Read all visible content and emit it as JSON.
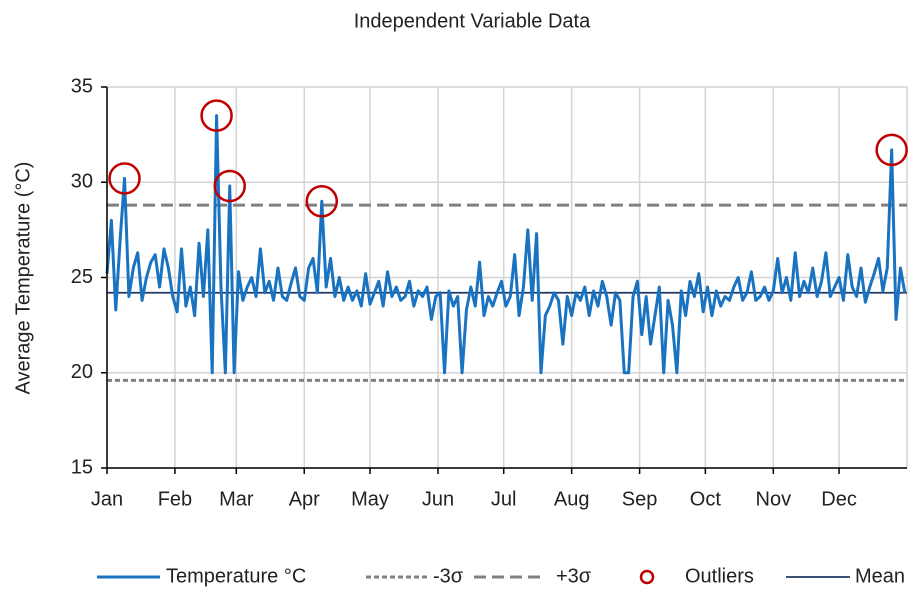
{
  "chart_data": {
    "type": "line",
    "title": "Independent Variable Data",
    "y_label": "Average Temperature (°C)",
    "xlim": [
      1,
      366
    ],
    "xticks": [
      {
        "value": 1,
        "label": "Jan"
      },
      {
        "value": 32,
        "label": "Feb"
      },
      {
        "value": 60,
        "label": "Mar"
      },
      {
        "value": 91,
        "label": "Apr"
      },
      {
        "value": 121,
        "label": "May"
      },
      {
        "value": 152,
        "label": "Jun"
      },
      {
        "value": 182,
        "label": "Jul"
      },
      {
        "value": 213,
        "label": "Aug"
      },
      {
        "value": 244,
        "label": "Sep"
      },
      {
        "value": 274,
        "label": "Oct"
      },
      {
        "value": 305,
        "label": "Nov"
      },
      {
        "value": 335,
        "label": "Dec"
      }
    ],
    "ylim": [
      15,
      35
    ],
    "yticks": [
      15,
      20,
      25,
      30,
      35
    ],
    "grid": true,
    "legend": "bottom",
    "x": [
      1,
      3,
      5,
      7,
      9,
      11,
      13,
      15,
      17,
      19,
      21,
      23,
      25,
      27,
      29,
      31,
      33,
      35,
      37,
      39,
      41,
      43,
      45,
      47,
      49,
      51,
      53,
      55,
      57,
      59,
      61,
      63,
      65,
      67,
      69,
      71,
      73,
      75,
      77,
      79,
      81,
      83,
      85,
      87,
      89,
      91,
      93,
      95,
      97,
      99,
      101,
      103,
      105,
      107,
      109,
      111,
      113,
      115,
      117,
      119,
      121,
      123,
      125,
      127,
      129,
      131,
      133,
      135,
      137,
      139,
      141,
      143,
      145,
      147,
      149,
      151,
      153,
      155,
      157,
      159,
      161,
      163,
      165,
      167,
      169,
      171,
      173,
      175,
      177,
      179,
      181,
      183,
      185,
      187,
      189,
      191,
      193,
      195,
      197,
      199,
      201,
      203,
      205,
      207,
      209,
      211,
      213,
      215,
      217,
      219,
      221,
      223,
      225,
      227,
      229,
      231,
      233,
      235,
      237,
      239,
      241,
      243,
      245,
      247,
      249,
      251,
      253,
      255,
      257,
      259,
      261,
      263,
      265,
      267,
      269,
      271,
      273,
      275,
      277,
      279,
      281,
      283,
      285,
      287,
      289,
      291,
      293,
      295,
      297,
      299,
      301,
      303,
      305,
      307,
      309,
      311,
      313,
      315,
      317,
      319,
      321,
      323,
      325,
      327,
      329,
      331,
      333,
      335,
      337,
      339,
      341,
      343,
      345,
      347,
      349,
      351,
      353,
      355,
      357,
      359,
      361,
      363,
      365
    ],
    "series": [
      {
        "name": "Temperature °C",
        "kind": "line",
        "color": "#1a73c1",
        "values": [
          25.2,
          28.0,
          23.3,
          27.0,
          30.2,
          24.0,
          25.5,
          26.3,
          23.8,
          25.0,
          25.8,
          26.2,
          24.5,
          26.5,
          25.5,
          24.0,
          23.2,
          26.5,
          23.5,
          24.5,
          23.0,
          26.8,
          24.0,
          27.5,
          20.0,
          33.5,
          24.5,
          20.0,
          29.8,
          20.0,
          25.3,
          23.8,
          24.5,
          25.0,
          24.0,
          26.5,
          24.2,
          24.8,
          23.8,
          25.5,
          24.0,
          23.8,
          24.7,
          25.5,
          24.0,
          23.8,
          25.5,
          26.0,
          24.2,
          29.0,
          24.5,
          26.0,
          24.0,
          25.0,
          23.8,
          24.5,
          23.8,
          24.3,
          23.5,
          25.2,
          23.6,
          24.2,
          24.8,
          23.5,
          25.3,
          24.0,
          24.5,
          23.8,
          24.0,
          24.8,
          23.5,
          24.3,
          24.0,
          24.5,
          22.8,
          24.0,
          24.2,
          20.0,
          24.3,
          23.5,
          24.0,
          20.0,
          23.3,
          24.5,
          23.5,
          25.8,
          23.0,
          24.0,
          23.5,
          24.2,
          24.8,
          23.5,
          24.0,
          26.2,
          23.0,
          24.5,
          27.5,
          23.8,
          27.3,
          20.0,
          23.0,
          23.5,
          24.2,
          23.8,
          21.5,
          24.0,
          23.0,
          24.2,
          23.8,
          24.5,
          23.0,
          24.3,
          23.5,
          24.8,
          24.0,
          22.5,
          24.2,
          23.8,
          20.0,
          20.0,
          24.0,
          24.8,
          22.0,
          24.0,
          21.5,
          23.0,
          24.5,
          20.0,
          23.8,
          22.5,
          20.0,
          24.3,
          23.0,
          24.8,
          24.0,
          25.2,
          23.2,
          24.5,
          23.0,
          24.3,
          23.5,
          24.0,
          23.8,
          24.5,
          25.0,
          23.8,
          24.2,
          25.3,
          23.8,
          24.0,
          24.5,
          23.8,
          24.3,
          26.0,
          24.2,
          25.0,
          23.8,
          26.3,
          24.0,
          24.8,
          24.2,
          25.5,
          24.0,
          24.8,
          26.3,
          24.0,
          24.5,
          25.0,
          23.8,
          26.2,
          24.5,
          24.0,
          25.5,
          23.7,
          24.5,
          25.2,
          26.0,
          24.3,
          25.5,
          31.7,
          22.8,
          25.5,
          24.2
        ]
      },
      {
        "name": "-3σ",
        "kind": "hline",
        "value": 19.6,
        "color": "#808080",
        "line_style": "dotted"
      },
      {
        "name": "+3σ",
        "kind": "hline",
        "value": 28.8,
        "color": "#808080",
        "line_style": "dashed"
      },
      {
        "name": "Outliers",
        "kind": "scatter",
        "color": "#c00000",
        "x": [
          9,
          51,
          57,
          99,
          359
        ],
        "values": [
          30.2,
          33.5,
          29.8,
          29.0,
          31.7
        ]
      },
      {
        "name": "Mean",
        "kind": "hline",
        "value": 24.2,
        "color": "#1f3864",
        "line_style": "solid"
      }
    ]
  }
}
